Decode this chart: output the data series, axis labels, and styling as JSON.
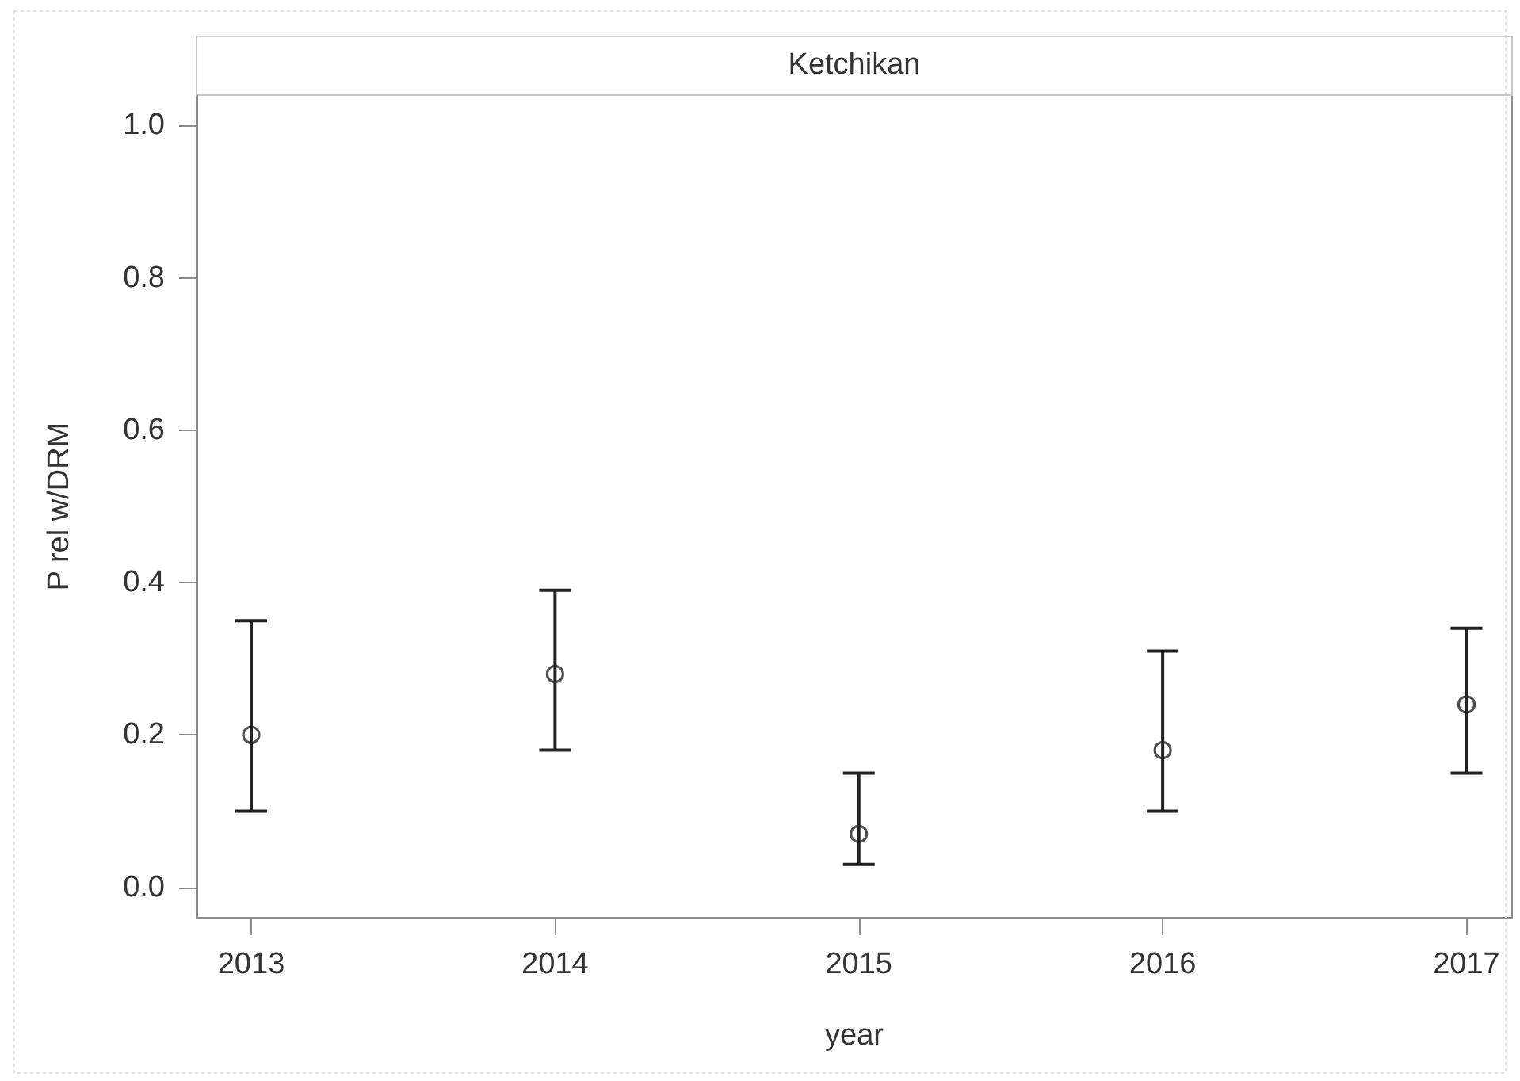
{
  "chart_data": {
    "type": "scatter",
    "title": "Ketchikan",
    "xlabel": "year",
    "ylabel": "P rel w/DRM",
    "x": [
      2013,
      2014,
      2015,
      2016,
      2017
    ],
    "values": [
      0.2,
      0.28,
      0.07,
      0.18,
      0.24
    ],
    "errors": [
      [
        0.1,
        0.35
      ],
      [
        0.18,
        0.39
      ],
      [
        0.03,
        0.15
      ],
      [
        0.1,
        0.31
      ],
      [
        0.15,
        0.34
      ]
    ],
    "color": "#222222",
    "marker": "circle",
    "xlim": [
      2012.82,
      2017.15
    ],
    "ylim": [
      -0.04,
      1.04
    ],
    "xticks": [
      2013,
      2014,
      2015,
      2016,
      2017
    ],
    "yticks": [
      {
        "value": 0,
        "label": "0.0"
      },
      0.2,
      0.4,
      0.6,
      0.8,
      {
        "value": 1,
        "label": "1.0"
      }
    ]
  }
}
